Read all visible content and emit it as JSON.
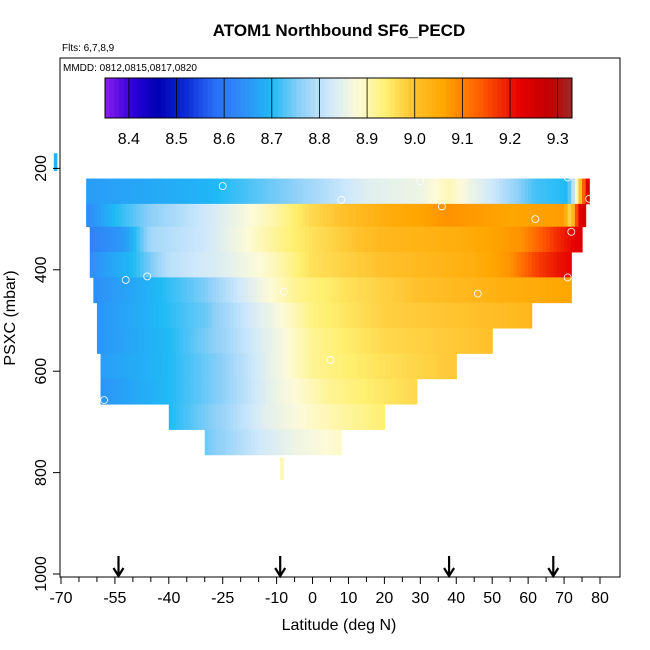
{
  "chart_data": {
    "type": "heatmap",
    "title": "ATOM1 Northbound SF6_PECD",
    "flights_note": "Flts: 6,7,8,9",
    "dates_note": "MMDD: 0812,0815,0817,0820",
    "xlabel": "Latitude (deg N)",
    "ylabel": "PSXC (mbar)",
    "xlim": [
      -70,
      80
    ],
    "ylim": [
      1000,
      0
    ],
    "x_ticks": [
      "-70",
      "-55",
      "-40",
      "-25",
      "-10",
      "0",
      "10",
      "20",
      "30",
      "40",
      "50",
      "60",
      "70",
      "80"
    ],
    "x_tick_values": [
      -70,
      -55,
      -40,
      -25,
      -10,
      0,
      10,
      20,
      30,
      40,
      50,
      60,
      70,
      80
    ],
    "y_ticks": [
      "200",
      "400",
      "600",
      "800",
      "1000"
    ],
    "y_tick_values": [
      200,
      400,
      600,
      800,
      1000
    ],
    "colorbar": {
      "min": 8.35,
      "max": 9.33,
      "ticks": [
        "8.4",
        "8.5",
        "8.6",
        "8.7",
        "8.8",
        "8.9",
        "9.0",
        "9.1",
        "9.2",
        "9.3"
      ],
      "tick_values": [
        8.4,
        8.5,
        8.6,
        8.7,
        8.8,
        8.9,
        9.0,
        9.1,
        9.2,
        9.3
      ],
      "color_stops": [
        {
          "v": 8.35,
          "c": "#8c1cf0"
        },
        {
          "v": 8.41,
          "c": "#2a00d8"
        },
        {
          "v": 8.46,
          "c": "#0000b4"
        },
        {
          "v": 8.52,
          "c": "#0c2cd6"
        },
        {
          "v": 8.58,
          "c": "#2a6ef5"
        },
        {
          "v": 8.64,
          "c": "#2f8ef8"
        },
        {
          "v": 8.7,
          "c": "#1fbaf5"
        },
        {
          "v": 8.76,
          "c": "#8fd0f8"
        },
        {
          "v": 8.82,
          "c": "#cfe8fb"
        },
        {
          "v": 8.88,
          "c": "#fdfad8"
        },
        {
          "v": 8.94,
          "c": "#fff070"
        },
        {
          "v": 9.0,
          "c": "#ffc02a"
        },
        {
          "v": 9.06,
          "c": "#ffa600"
        },
        {
          "v": 9.14,
          "c": "#ff5a00"
        },
        {
          "v": 9.22,
          "c": "#e60000"
        },
        {
          "v": 9.28,
          "c": "#c40000"
        },
        {
          "v": 9.33,
          "c": "#a02828"
        }
      ]
    },
    "rows": [
      {
        "p0": 220,
        "p1": 270,
        "lat_min": -63,
        "lat_max": 77,
        "keys": [
          [
            -63,
            8.66
          ],
          [
            -30,
            8.69
          ],
          [
            -5,
            8.76
          ],
          [
            15,
            8.84
          ],
          [
            30,
            8.86
          ],
          [
            38,
            8.9
          ],
          [
            50,
            8.82
          ],
          [
            62,
            8.72
          ],
          [
            71,
            8.7
          ],
          [
            72.5,
            8.8
          ],
          [
            74,
            8.95
          ],
          [
            75,
            9.05
          ],
          [
            76,
            9.22
          ],
          [
            77,
            9.25
          ]
        ]
      },
      {
        "p0": 270,
        "p1": 315,
        "lat_min": -63,
        "lat_max": 76,
        "keys": [
          [
            -63,
            8.63
          ],
          [
            -55,
            8.7
          ],
          [
            -45,
            8.76
          ],
          [
            -30,
            8.82
          ],
          [
            -10,
            8.91
          ],
          [
            0,
            8.97
          ],
          [
            20,
            9.04
          ],
          [
            38,
            9.08
          ],
          [
            55,
            9.06
          ],
          [
            70,
            9.07
          ],
          [
            72,
            8.95
          ],
          [
            74,
            9.22
          ],
          [
            76,
            9.25
          ]
        ]
      },
      {
        "p0": 315,
        "p1": 365,
        "lat_min": -62,
        "lat_max": 75,
        "keys": [
          [
            -62,
            8.62
          ],
          [
            -52,
            8.66
          ],
          [
            -45,
            8.78
          ],
          [
            -30,
            8.82
          ],
          [
            -10,
            8.92
          ],
          [
            0,
            8.96
          ],
          [
            20,
            9.02
          ],
          [
            40,
            9.04
          ],
          [
            58,
            9.08
          ],
          [
            68,
            9.18
          ],
          [
            73,
            9.22
          ],
          [
            75,
            9.24
          ]
        ]
      },
      {
        "p0": 365,
        "p1": 415,
        "lat_min": -62,
        "lat_max": 72,
        "keys": [
          [
            -62,
            8.64
          ],
          [
            -50,
            8.7
          ],
          [
            -40,
            8.8
          ],
          [
            -25,
            8.84
          ],
          [
            -10,
            8.9
          ],
          [
            0,
            8.96
          ],
          [
            20,
            9.0
          ],
          [
            45,
            9.04
          ],
          [
            55,
            9.08
          ],
          [
            62,
            9.16
          ],
          [
            68,
            9.2
          ],
          [
            72,
            9.22
          ]
        ]
      },
      {
        "p0": 415,
        "p1": 465,
        "lat_min": -61,
        "lat_max": 72,
        "keys": [
          [
            -61,
            8.64
          ],
          [
            -45,
            8.69
          ],
          [
            -30,
            8.75
          ],
          [
            -15,
            8.86
          ],
          [
            -5,
            8.92
          ],
          [
            10,
            8.96
          ],
          [
            30,
            9.0
          ],
          [
            55,
            9.04
          ],
          [
            72,
            9.06
          ]
        ]
      },
      {
        "p0": 465,
        "p1": 515,
        "lat_min": -60,
        "lat_max": 61,
        "keys": [
          [
            -60,
            8.65
          ],
          [
            -45,
            8.69
          ],
          [
            -30,
            8.74
          ],
          [
            -15,
            8.84
          ],
          [
            0,
            8.93
          ],
          [
            20,
            8.98
          ],
          [
            45,
            9.0
          ],
          [
            61,
            9.02
          ]
        ]
      },
      {
        "p0": 515,
        "p1": 565,
        "lat_min": -60,
        "lat_max": 50,
        "keys": [
          [
            -60,
            8.65
          ],
          [
            -40,
            8.7
          ],
          [
            -25,
            8.77
          ],
          [
            -12,
            8.85
          ],
          [
            0,
            8.92
          ],
          [
            20,
            8.97
          ],
          [
            50,
            9.0
          ]
        ]
      },
      {
        "p0": 565,
        "p1": 615,
        "lat_min": -59,
        "lat_max": 40,
        "keys": [
          [
            -59,
            8.66
          ],
          [
            -40,
            8.7
          ],
          [
            -25,
            8.76
          ],
          [
            -12,
            8.85
          ],
          [
            0,
            8.92
          ],
          [
            20,
            8.96
          ],
          [
            40,
            8.99
          ]
        ]
      },
      {
        "p0": 615,
        "p1": 665,
        "lat_min": -59,
        "lat_max": 29,
        "keys": [
          [
            -59,
            8.65
          ],
          [
            -40,
            8.7
          ],
          [
            -25,
            8.76
          ],
          [
            -10,
            8.86
          ],
          [
            5,
            8.92
          ],
          [
            29,
            8.97
          ]
        ]
      },
      {
        "p0": 665,
        "p1": 715,
        "lat_min": -40,
        "lat_max": 20,
        "keys": [
          [
            -40,
            8.7
          ],
          [
            -25,
            8.77
          ],
          [
            -12,
            8.85
          ],
          [
            0,
            8.89
          ],
          [
            20,
            8.94
          ]
        ]
      },
      {
        "p0": 715,
        "p1": 765,
        "lat_min": -30,
        "lat_max": 8,
        "keys": [
          [
            -30,
            8.74
          ],
          [
            -15,
            8.82
          ],
          [
            -5,
            8.86
          ],
          [
            8,
            8.89
          ]
        ]
      }
    ],
    "isolated_cells": [
      {
        "lat": -72,
        "p0": 170,
        "p1": 205,
        "v": 8.69
      },
      {
        "lat": -9,
        "p0": 770,
        "p1": 815,
        "v": 8.9
      }
    ],
    "sample_points": [
      [
        -25,
        235
      ],
      [
        30,
        225
      ],
      [
        71,
        218
      ],
      [
        8,
        262
      ],
      [
        77,
        260
      ],
      [
        36,
        275
      ],
      [
        62,
        300
      ],
      [
        72,
        325
      ],
      [
        -52,
        420
      ],
      [
        -46,
        413
      ],
      [
        -8,
        443
      ],
      [
        46,
        447
      ],
      [
        71,
        415
      ],
      [
        5,
        578
      ],
      [
        -58,
        657
      ]
    ],
    "arrows_lat": [
      -54,
      -9,
      38,
      67
    ]
  }
}
